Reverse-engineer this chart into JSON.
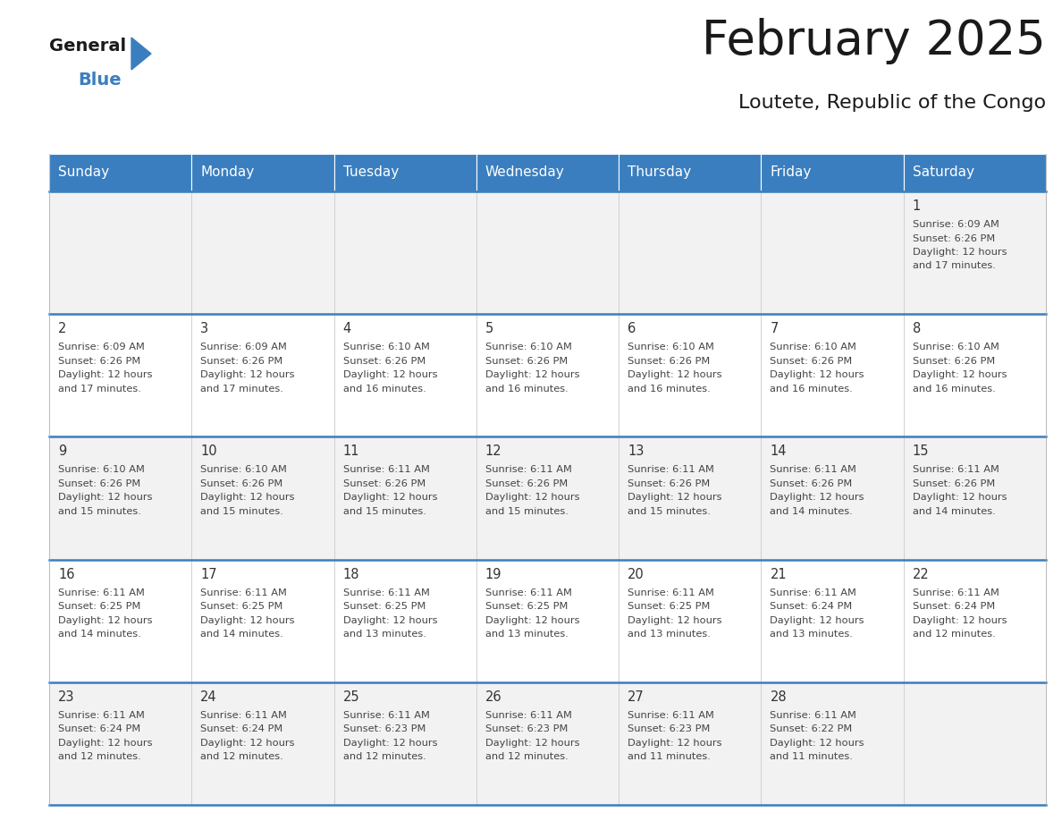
{
  "title": "February 2025",
  "subtitle": "Loutete, Republic of the Congo",
  "header_bg": "#3a7ebf",
  "header_text_color": "#ffffff",
  "days_of_week": [
    "Sunday",
    "Monday",
    "Tuesday",
    "Wednesday",
    "Thursday",
    "Friday",
    "Saturday"
  ],
  "cell_bg_light": "#f2f2f2",
  "cell_bg_white": "#ffffff",
  "cell_border_color": "#3a7ebf",
  "day_number_color": "#333333",
  "info_text_color": "#444444",
  "calendar": [
    [
      null,
      null,
      null,
      null,
      null,
      null,
      {
        "day": 1,
        "sunrise": "6:09 AM",
        "sunset": "6:26 PM",
        "daylight": "12 hours and 17 minutes."
      }
    ],
    [
      {
        "day": 2,
        "sunrise": "6:09 AM",
        "sunset": "6:26 PM",
        "daylight": "12 hours and 17 minutes."
      },
      {
        "day": 3,
        "sunrise": "6:09 AM",
        "sunset": "6:26 PM",
        "daylight": "12 hours and 17 minutes."
      },
      {
        "day": 4,
        "sunrise": "6:10 AM",
        "sunset": "6:26 PM",
        "daylight": "12 hours and 16 minutes."
      },
      {
        "day": 5,
        "sunrise": "6:10 AM",
        "sunset": "6:26 PM",
        "daylight": "12 hours and 16 minutes."
      },
      {
        "day": 6,
        "sunrise": "6:10 AM",
        "sunset": "6:26 PM",
        "daylight": "12 hours and 16 minutes."
      },
      {
        "day": 7,
        "sunrise": "6:10 AM",
        "sunset": "6:26 PM",
        "daylight": "12 hours and 16 minutes."
      },
      {
        "day": 8,
        "sunrise": "6:10 AM",
        "sunset": "6:26 PM",
        "daylight": "12 hours and 16 minutes."
      }
    ],
    [
      {
        "day": 9,
        "sunrise": "6:10 AM",
        "sunset": "6:26 PM",
        "daylight": "12 hours and 15 minutes."
      },
      {
        "day": 10,
        "sunrise": "6:10 AM",
        "sunset": "6:26 PM",
        "daylight": "12 hours and 15 minutes."
      },
      {
        "day": 11,
        "sunrise": "6:11 AM",
        "sunset": "6:26 PM",
        "daylight": "12 hours and 15 minutes."
      },
      {
        "day": 12,
        "sunrise": "6:11 AM",
        "sunset": "6:26 PM",
        "daylight": "12 hours and 15 minutes."
      },
      {
        "day": 13,
        "sunrise": "6:11 AM",
        "sunset": "6:26 PM",
        "daylight": "12 hours and 15 minutes."
      },
      {
        "day": 14,
        "sunrise": "6:11 AM",
        "sunset": "6:26 PM",
        "daylight": "12 hours and 14 minutes."
      },
      {
        "day": 15,
        "sunrise": "6:11 AM",
        "sunset": "6:26 PM",
        "daylight": "12 hours and 14 minutes."
      }
    ],
    [
      {
        "day": 16,
        "sunrise": "6:11 AM",
        "sunset": "6:25 PM",
        "daylight": "12 hours and 14 minutes."
      },
      {
        "day": 17,
        "sunrise": "6:11 AM",
        "sunset": "6:25 PM",
        "daylight": "12 hours and 14 minutes."
      },
      {
        "day": 18,
        "sunrise": "6:11 AM",
        "sunset": "6:25 PM",
        "daylight": "12 hours and 13 minutes."
      },
      {
        "day": 19,
        "sunrise": "6:11 AM",
        "sunset": "6:25 PM",
        "daylight": "12 hours and 13 minutes."
      },
      {
        "day": 20,
        "sunrise": "6:11 AM",
        "sunset": "6:25 PM",
        "daylight": "12 hours and 13 minutes."
      },
      {
        "day": 21,
        "sunrise": "6:11 AM",
        "sunset": "6:24 PM",
        "daylight": "12 hours and 13 minutes."
      },
      {
        "day": 22,
        "sunrise": "6:11 AM",
        "sunset": "6:24 PM",
        "daylight": "12 hours and 12 minutes."
      }
    ],
    [
      {
        "day": 23,
        "sunrise": "6:11 AM",
        "sunset": "6:24 PM",
        "daylight": "12 hours and 12 minutes."
      },
      {
        "day": 24,
        "sunrise": "6:11 AM",
        "sunset": "6:24 PM",
        "daylight": "12 hours and 12 minutes."
      },
      {
        "day": 25,
        "sunrise": "6:11 AM",
        "sunset": "6:23 PM",
        "daylight": "12 hours and 12 minutes."
      },
      {
        "day": 26,
        "sunrise": "6:11 AM",
        "sunset": "6:23 PM",
        "daylight": "12 hours and 12 minutes."
      },
      {
        "day": 27,
        "sunrise": "6:11 AM",
        "sunset": "6:23 PM",
        "daylight": "12 hours and 11 minutes."
      },
      {
        "day": 28,
        "sunrise": "6:11 AM",
        "sunset": "6:22 PM",
        "daylight": "12 hours and 11 minutes."
      },
      null
    ]
  ]
}
